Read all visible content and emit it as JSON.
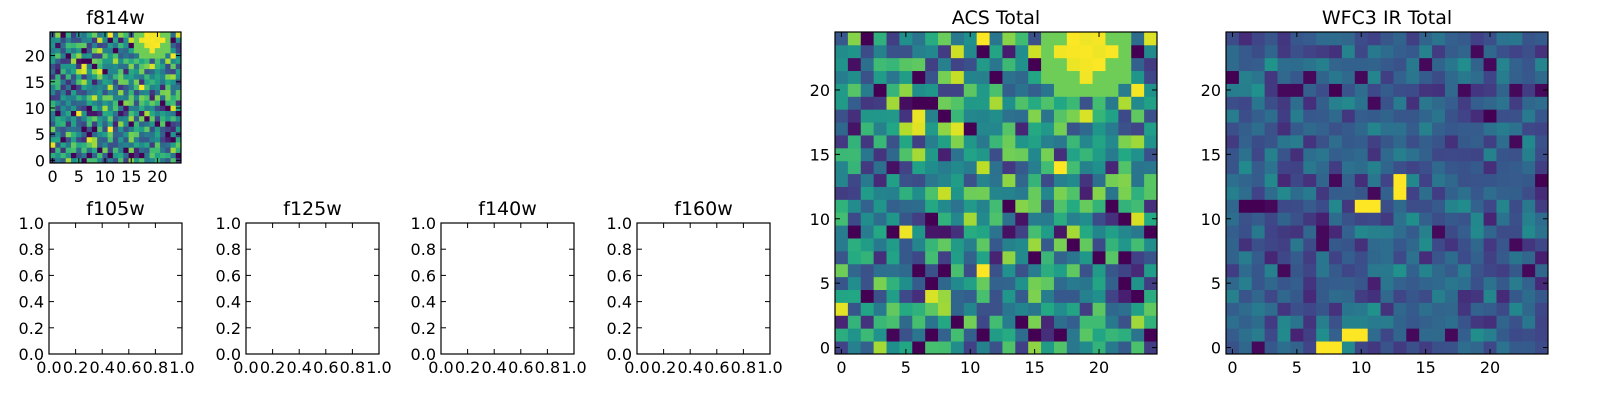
{
  "chart_data": [
    {
      "type": "heatmap",
      "title": "f814w",
      "grid": false,
      "colormap": "viridis",
      "xlim": [
        -0.5,
        24.5
      ],
      "ylim": [
        -0.5,
        24.5
      ],
      "xticks": [
        "0",
        "5",
        "10",
        "15",
        "20"
      ],
      "yticks": [
        "0",
        "5",
        "10",
        "15",
        "20"
      ],
      "shape": [
        25,
        25
      ],
      "seed": 814,
      "mode": "acs",
      "hot_spot": {
        "x": 19,
        "y": 23
      }
    },
    {
      "type": "empty",
      "title": "f105w",
      "xlim": [
        0.0,
        1.0
      ],
      "ylim": [
        0.0,
        1.0
      ],
      "xticks": [
        "0.0",
        "0.2",
        "0.4",
        "0.6",
        "0.8",
        "1.0"
      ],
      "yticks": [
        "0.0",
        "0.2",
        "0.4",
        "0.6",
        "0.8",
        "1.0"
      ]
    },
    {
      "type": "empty",
      "title": "f125w",
      "xlim": [
        0.0,
        1.0
      ],
      "ylim": [
        0.0,
        1.0
      ],
      "xticks": [
        "0.0",
        "0.2",
        "0.4",
        "0.6",
        "0.8",
        "1.0"
      ],
      "yticks": [
        "0.0",
        "0.2",
        "0.4",
        "0.6",
        "0.8",
        "1.0"
      ]
    },
    {
      "type": "empty",
      "title": "f140w",
      "xlim": [
        0.0,
        1.0
      ],
      "ylim": [
        0.0,
        1.0
      ],
      "xticks": [
        "0.0",
        "0.2",
        "0.4",
        "0.6",
        "0.8",
        "1.0"
      ],
      "yticks": [
        "0.0",
        "0.2",
        "0.4",
        "0.6",
        "0.8",
        "1.0"
      ]
    },
    {
      "type": "empty",
      "title": "f160w",
      "xlim": [
        0.0,
        1.0
      ],
      "ylim": [
        0.0,
        1.0
      ],
      "xticks": [
        "0.0",
        "0.2",
        "0.4",
        "0.6",
        "0.8",
        "1.0"
      ],
      "yticks": [
        "0.0",
        "0.2",
        "0.4",
        "0.6",
        "0.8",
        "1.0"
      ]
    },
    {
      "type": "heatmap",
      "title": "ACS Total",
      "grid": false,
      "colormap": "viridis",
      "xlim": [
        -0.5,
        24.5
      ],
      "ylim": [
        -0.5,
        24.5
      ],
      "xticks": [
        "0",
        "5",
        "10",
        "15",
        "20"
      ],
      "yticks": [
        "0",
        "5",
        "10",
        "15",
        "20"
      ],
      "shape": [
        25,
        25
      ],
      "seed": 814,
      "mode": "acs",
      "hot_spot": {
        "x": 19,
        "y": 23
      }
    },
    {
      "type": "heatmap",
      "title": "WFC3 IR Total",
      "grid": false,
      "colormap": "viridis",
      "xlim": [
        -0.5,
        24.5
      ],
      "ylim": [
        -0.5,
        24.5
      ],
      "xticks": [
        "0",
        "5",
        "10",
        "15",
        "20"
      ],
      "yticks": [
        "0",
        "5",
        "10",
        "15",
        "20"
      ],
      "shape": [
        25,
        25
      ],
      "seed": 3,
      "mode": "ir",
      "bright_pixels": [
        {
          "x": 13,
          "y": 12
        },
        {
          "x": 13,
          "y": 13
        },
        {
          "x": 10,
          "y": 11
        },
        {
          "x": 11,
          "y": 11
        },
        {
          "x": 7,
          "y": 0
        },
        {
          "x": 8,
          "y": 0
        },
        {
          "x": 9,
          "y": 1
        },
        {
          "x": 10,
          "y": 1
        }
      ],
      "dark_pixels": [
        {
          "x": 0,
          "y": 21
        },
        {
          "x": 1,
          "y": 11
        },
        {
          "x": 2,
          "y": 11
        },
        {
          "x": 8,
          "y": 20
        },
        {
          "x": 20,
          "y": 18
        },
        {
          "x": 24,
          "y": 13
        }
      ]
    }
  ]
}
